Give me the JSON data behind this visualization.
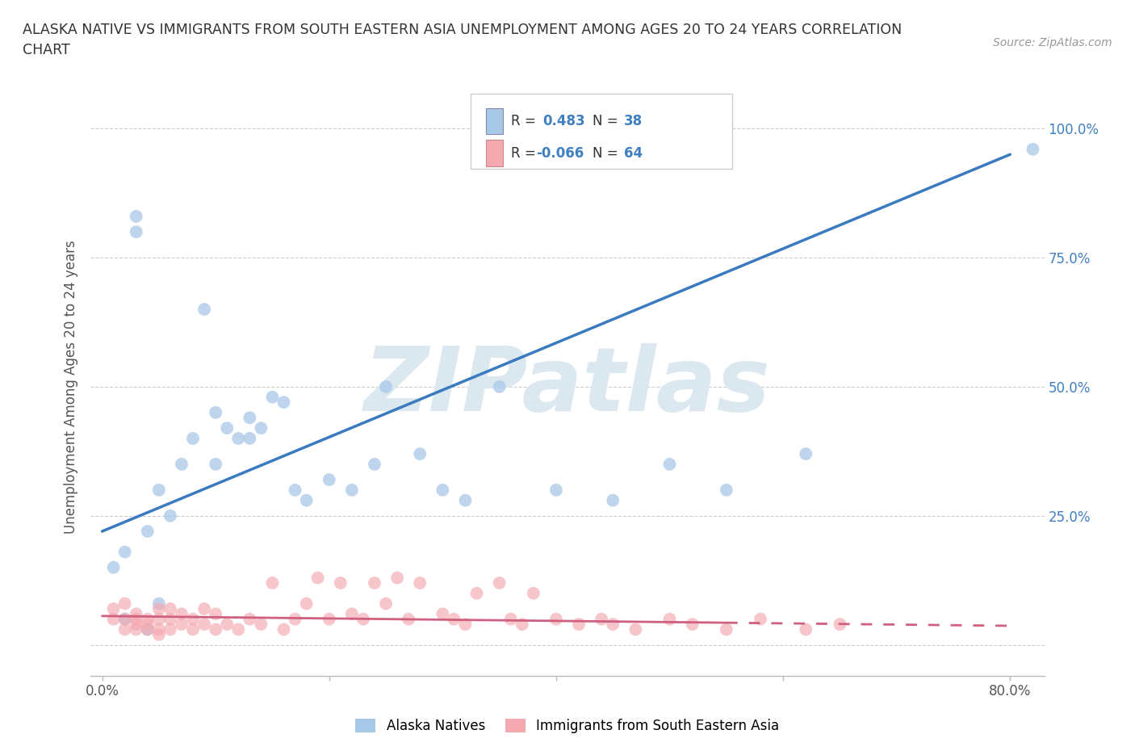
{
  "title": "ALASKA NATIVE VS IMMIGRANTS FROM SOUTH EASTERN ASIA UNEMPLOYMENT AMONG AGES 20 TO 24 YEARS CORRELATION\nCHART",
  "source_text": "Source: ZipAtlas.com",
  "ylabel": "Unemployment Among Ages 20 to 24 years",
  "xlim": [
    -0.01,
    0.83
  ],
  "ylim": [
    -0.06,
    1.06
  ],
  "xticks": [
    0.0,
    0.2,
    0.4,
    0.6,
    0.8
  ],
  "xticklabels": [
    "0.0%",
    "",
    "",
    "",
    "80.0%"
  ],
  "yticks": [
    0.0,
    0.25,
    0.5,
    0.75,
    1.0
  ],
  "yticklabels": [
    "",
    "25.0%",
    "50.0%",
    "75.0%",
    "100.0%"
  ],
  "blue_color": "#a8c8e8",
  "pink_color": "#f4a8b0",
  "blue_line_color": "#3a7abf",
  "pink_line_color": "#d06080",
  "watermark_color": "#dce8f0",
  "r_blue": 0.483,
  "n_blue": 38,
  "r_pink": -0.066,
  "n_pink": 64,
  "legend1_label": "Alaska Natives",
  "legend2_label": "Immigrants from South Eastern Asia",
  "blue_line_x0": 0.0,
  "blue_line_y0": 0.22,
  "blue_line_x1": 0.8,
  "blue_line_y1": 0.95,
  "pink_line_x0": 0.0,
  "pink_line_y0": 0.056,
  "pink_line_x1": 0.55,
  "pink_line_y1": 0.043,
  "pink_line_dash_x0": 0.55,
  "pink_line_dash_y0": 0.043,
  "pink_line_dash_x1": 0.8,
  "pink_line_dash_y1": 0.037,
  "blue_scatter_x": [
    0.01,
    0.02,
    0.02,
    0.03,
    0.03,
    0.04,
    0.04,
    0.05,
    0.05,
    0.06,
    0.07,
    0.08,
    0.09,
    0.1,
    0.1,
    0.11,
    0.12,
    0.13,
    0.13,
    0.14,
    0.15,
    0.16,
    0.17,
    0.18,
    0.2,
    0.22,
    0.24,
    0.25,
    0.28,
    0.3,
    0.32,
    0.35,
    0.4,
    0.45,
    0.5,
    0.55,
    0.62,
    0.82
  ],
  "blue_scatter_y": [
    0.15,
    0.05,
    0.18,
    0.8,
    0.83,
    0.03,
    0.22,
    0.3,
    0.08,
    0.25,
    0.35,
    0.4,
    0.65,
    0.35,
    0.45,
    0.42,
    0.4,
    0.44,
    0.4,
    0.42,
    0.48,
    0.47,
    0.3,
    0.28,
    0.32,
    0.3,
    0.35,
    0.5,
    0.37,
    0.3,
    0.28,
    0.5,
    0.3,
    0.28,
    0.35,
    0.3,
    0.37,
    0.96
  ],
  "pink_scatter_x": [
    0.01,
    0.01,
    0.02,
    0.02,
    0.02,
    0.03,
    0.03,
    0.03,
    0.03,
    0.04,
    0.04,
    0.04,
    0.05,
    0.05,
    0.05,
    0.05,
    0.06,
    0.06,
    0.06,
    0.07,
    0.07,
    0.08,
    0.08,
    0.09,
    0.09,
    0.1,
    0.1,
    0.11,
    0.12,
    0.13,
    0.14,
    0.15,
    0.16,
    0.17,
    0.18,
    0.19,
    0.2,
    0.21,
    0.22,
    0.23,
    0.24,
    0.25,
    0.26,
    0.27,
    0.28,
    0.3,
    0.31,
    0.32,
    0.33,
    0.35,
    0.36,
    0.37,
    0.38,
    0.4,
    0.42,
    0.44,
    0.45,
    0.47,
    0.5,
    0.52,
    0.55,
    0.58,
    0.62,
    0.65
  ],
  "pink_scatter_y": [
    0.05,
    0.07,
    0.03,
    0.05,
    0.08,
    0.03,
    0.04,
    0.05,
    0.06,
    0.03,
    0.04,
    0.05,
    0.02,
    0.03,
    0.05,
    0.07,
    0.03,
    0.05,
    0.07,
    0.04,
    0.06,
    0.03,
    0.05,
    0.04,
    0.07,
    0.03,
    0.06,
    0.04,
    0.03,
    0.05,
    0.04,
    0.12,
    0.03,
    0.05,
    0.08,
    0.13,
    0.05,
    0.12,
    0.06,
    0.05,
    0.12,
    0.08,
    0.13,
    0.05,
    0.12,
    0.06,
    0.05,
    0.04,
    0.1,
    0.12,
    0.05,
    0.04,
    0.1,
    0.05,
    0.04,
    0.05,
    0.04,
    0.03,
    0.05,
    0.04,
    0.03,
    0.05,
    0.03,
    0.04
  ],
  "grid_color": "#cccccc",
  "background_color": "#ffffff",
  "tick_label_color": "#555555",
  "right_tick_color": "#4080c0",
  "ylabel_color": "#555555",
  "title_color": "#333333",
  "source_color": "#999999"
}
